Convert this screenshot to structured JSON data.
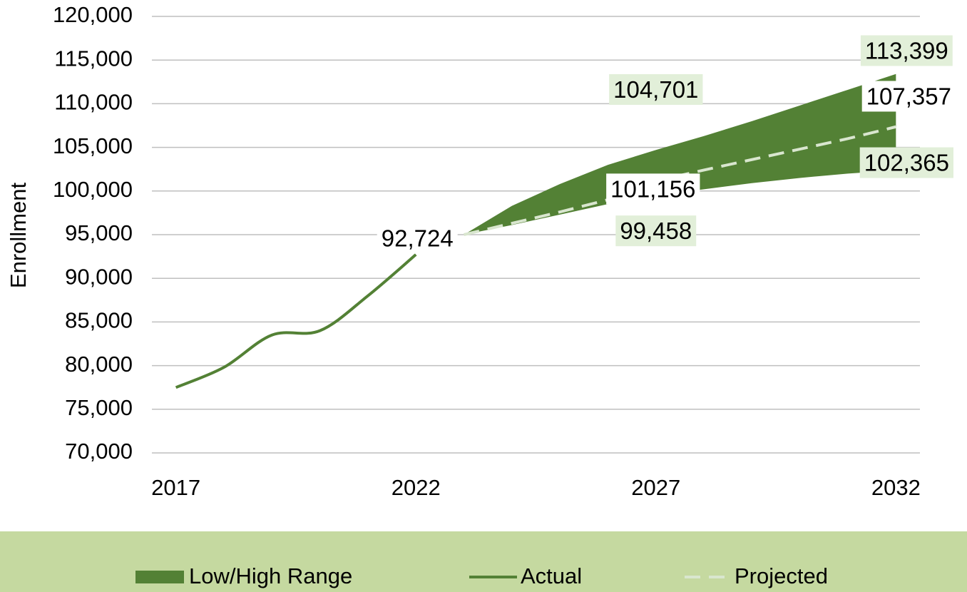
{
  "chart_data": {
    "type": "line",
    "y_label": "Enrollment",
    "x": [
      2017,
      2018,
      2019,
      2020,
      2021,
      2022,
      2023,
      2024,
      2025,
      2026,
      2027,
      2028,
      2029,
      2030,
      2031,
      2032
    ],
    "xlim": [
      2016.5,
      2032.5
    ],
    "xticks": [
      2017,
      2022,
      2027,
      2032
    ],
    "ylim": [
      70000,
      120000
    ],
    "yticks": [
      {
        "value": 70000,
        "label": "70,000"
      },
      {
        "value": 75000,
        "label": "75,000"
      },
      {
        "value": 80000,
        "label": "80,000"
      },
      {
        "value": 85000,
        "label": "85,000"
      },
      {
        "value": 90000,
        "label": "90,000"
      },
      {
        "value": 95000,
        "label": "95,000"
      },
      {
        "value": 100000,
        "label": "100,000"
      },
      {
        "value": 105000,
        "label": "105,000"
      },
      {
        "value": 110000,
        "label": "110,000"
      },
      {
        "value": 115000,
        "label": "115,000"
      },
      {
        "value": 120000,
        "label": "120,000"
      }
    ],
    "grid": true,
    "legend": "bottom",
    "series": [
      {
        "name": "Low/High Range",
        "kind": "range",
        "color": "#538135",
        "high": [
          null,
          null,
          null,
          null,
          null,
          null,
          95000,
          98300,
          100800,
          103000,
          104701,
          106300,
          108000,
          109800,
          111600,
          113399
        ],
        "high_value_labels": [
          null,
          null,
          null,
          null,
          null,
          null,
          null,
          null,
          null,
          null,
          "104,701",
          null,
          null,
          null,
          null,
          "113,399"
        ],
        "low": [
          null,
          null,
          null,
          null,
          null,
          null,
          95000,
          96100,
          97300,
          98500,
          99458,
          100200,
          100900,
          101500,
          102000,
          102365
        ],
        "low_value_labels": [
          null,
          null,
          null,
          null,
          null,
          null,
          null,
          null,
          null,
          null,
          "99,458",
          null,
          null,
          null,
          null,
          "102,365"
        ]
      },
      {
        "name": "Actual",
        "kind": "solid",
        "color": "#538135",
        "values": [
          77500,
          79800,
          83500,
          84000,
          88000,
          92724,
          null,
          null,
          null,
          null,
          null,
          null,
          null,
          null,
          null,
          null
        ],
        "value_labels": [
          null,
          null,
          null,
          null,
          null,
          "92,724",
          null,
          null,
          null,
          null,
          null,
          null,
          null,
          null,
          null,
          null
        ]
      },
      {
        "name": "Projected",
        "kind": "dashed",
        "color": "#d9e6cf",
        "values": [
          null,
          null,
          null,
          null,
          null,
          null,
          95000,
          96300,
          97600,
          99000,
          101156,
          102400,
          103600,
          104800,
          106000,
          107357
        ],
        "value_labels": [
          null,
          null,
          null,
          null,
          null,
          null,
          null,
          null,
          null,
          null,
          "101,156",
          null,
          null,
          null,
          null,
          "107,357"
        ]
      }
    ]
  }
}
